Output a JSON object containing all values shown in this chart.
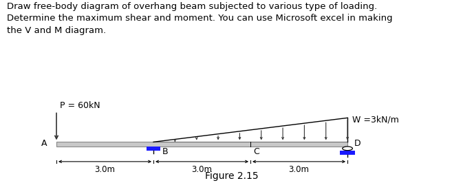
{
  "title_text": "Draw free-body diagram of overhang beam subjected to various type of loading.\nDetermine the maximum shear and moment. You can use Microsoft excel in making\nthe V and M diagram.",
  "label_P": "P = 60kN",
  "label_W": "W =3kN/m",
  "label_A": "A",
  "label_B": "B",
  "label_C": "C",
  "label_D": "D",
  "label_fig": "Figure 2.15",
  "dim_labels": [
    "3.0m",
    "3.0m",
    "3.0m"
  ],
  "beam_color": "#c8c8c8",
  "beam_edge_color": "#888888",
  "support_color": "#1a1aff",
  "arrow_color": "#333333",
  "line_color": "#000000",
  "load_line_color": "#333333",
  "text_fontsize": 9.5,
  "label_fontsize": 9,
  "fig_label_fontsize": 10,
  "figsize": [
    6.73,
    2.66
  ],
  "dpi": 100
}
